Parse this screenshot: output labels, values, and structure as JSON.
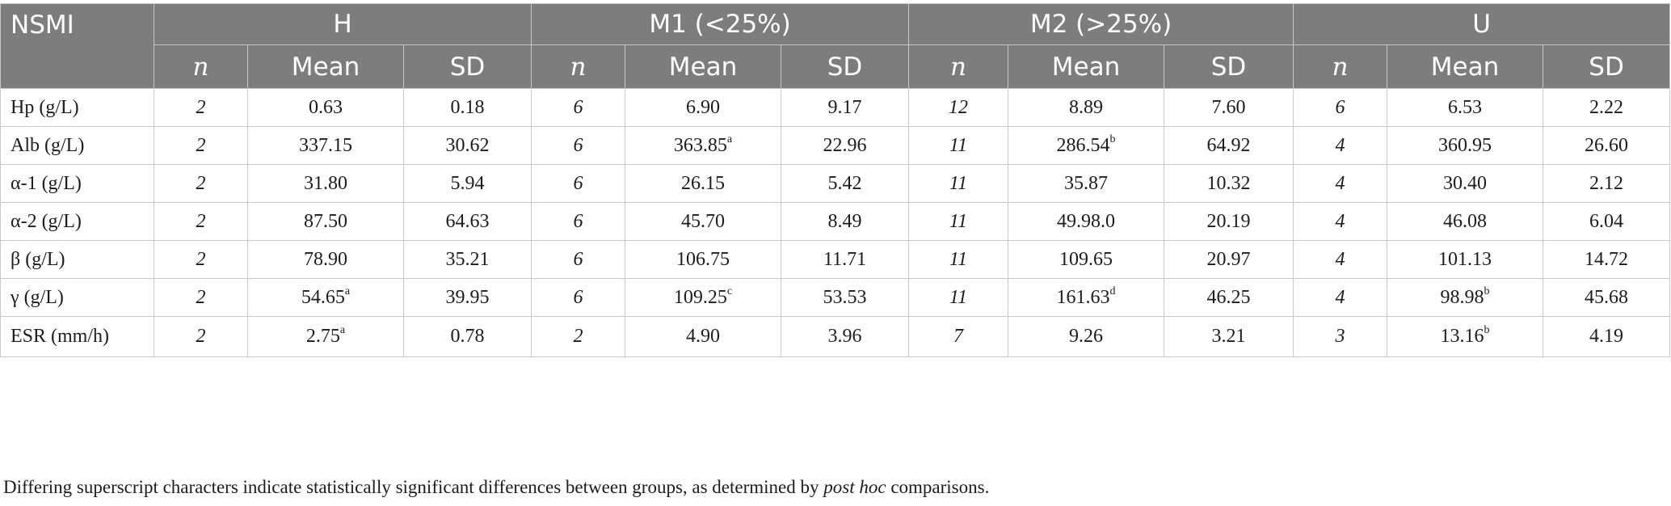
{
  "header": {
    "corner": "NSMI",
    "groups": [
      "H",
      "M1 (<25%)",
      "M2 (>25%)",
      "U"
    ],
    "subcols": [
      "n",
      "Mean",
      "SD"
    ]
  },
  "rows": [
    {
      "label": "Hp (g/L)",
      "cells": [
        {
          "n": "2",
          "mean": "0.63",
          "sup": "",
          "sd": "0.18"
        },
        {
          "n": "6",
          "mean": "6.90",
          "sup": "",
          "sd": "9.17"
        },
        {
          "n": "12",
          "mean": "8.89",
          "sup": "",
          "sd": "7.60"
        },
        {
          "n": "6",
          "mean": "6.53",
          "sup": "",
          "sd": "2.22"
        }
      ]
    },
    {
      "label": "Alb (g/L)",
      "cells": [
        {
          "n": "2",
          "mean": "337.15",
          "sup": "",
          "sd": "30.62"
        },
        {
          "n": "6",
          "mean": "363.85",
          "sup": "a",
          "sd": "22.96"
        },
        {
          "n": "11",
          "mean": "286.54",
          "sup": "b",
          "sd": "64.92"
        },
        {
          "n": "4",
          "mean": "360.95",
          "sup": "",
          "sd": "26.60"
        }
      ]
    },
    {
      "label": "α-1 (g/L)",
      "cells": [
        {
          "n": "2",
          "mean": "31.80",
          "sup": "",
          "sd": "5.94"
        },
        {
          "n": "6",
          "mean": "26.15",
          "sup": "",
          "sd": "5.42"
        },
        {
          "n": "11",
          "mean": "35.87",
          "sup": "",
          "sd": "10.32"
        },
        {
          "n": "4",
          "mean": "30.40",
          "sup": "",
          "sd": "2.12"
        }
      ]
    },
    {
      "label": "α-2 (g/L)",
      "cells": [
        {
          "n": "2",
          "mean": "87.50",
          "sup": "",
          "sd": "64.63"
        },
        {
          "n": "6",
          "mean": "45.70",
          "sup": "",
          "sd": "8.49"
        },
        {
          "n": "11",
          "mean": "49.98.0",
          "sup": "",
          "sd": "20.19"
        },
        {
          "n": "4",
          "mean": "46.08",
          "sup": "",
          "sd": "6.04"
        }
      ]
    },
    {
      "label": "β (g/L)",
      "cells": [
        {
          "n": "2",
          "mean": "78.90",
          "sup": "",
          "sd": "35.21"
        },
        {
          "n": "6",
          "mean": "106.75",
          "sup": "",
          "sd": "11.71"
        },
        {
          "n": "11",
          "mean": "109.65",
          "sup": "",
          "sd": "20.97"
        },
        {
          "n": "4",
          "mean": "101.13",
          "sup": "",
          "sd": "14.72"
        }
      ]
    },
    {
      "label": "γ (g/L)",
      "cells": [
        {
          "n": "2",
          "mean": "54.65",
          "sup": "a",
          "sd": "39.95"
        },
        {
          "n": "6",
          "mean": "109.25",
          "sup": "c",
          "sd": "53.53"
        },
        {
          "n": "11",
          "mean": "161.63",
          "sup": "d",
          "sd": "46.25"
        },
        {
          "n": "4",
          "mean": "98.98",
          "sup": "b",
          "sd": "45.68"
        }
      ]
    },
    {
      "label": "ESR (mm/h)",
      "cells": [
        {
          "n": "2",
          "mean": "2.75",
          "sup": "a",
          "sd": "0.78"
        },
        {
          "n": "2",
          "mean": "4.90",
          "sup": "",
          "sd": "3.96"
        },
        {
          "n": "7",
          "mean": "9.26",
          "sup": "",
          "sd": "3.21"
        },
        {
          "n": "3",
          "mean": "13.16",
          "sup": "b",
          "sd": "4.19"
        }
      ]
    }
  ],
  "footnote": {
    "before": "Differing superscript characters indicate statistically significant differences between groups, as determined by ",
    "em": "post hoc",
    "after": " comparisons."
  }
}
